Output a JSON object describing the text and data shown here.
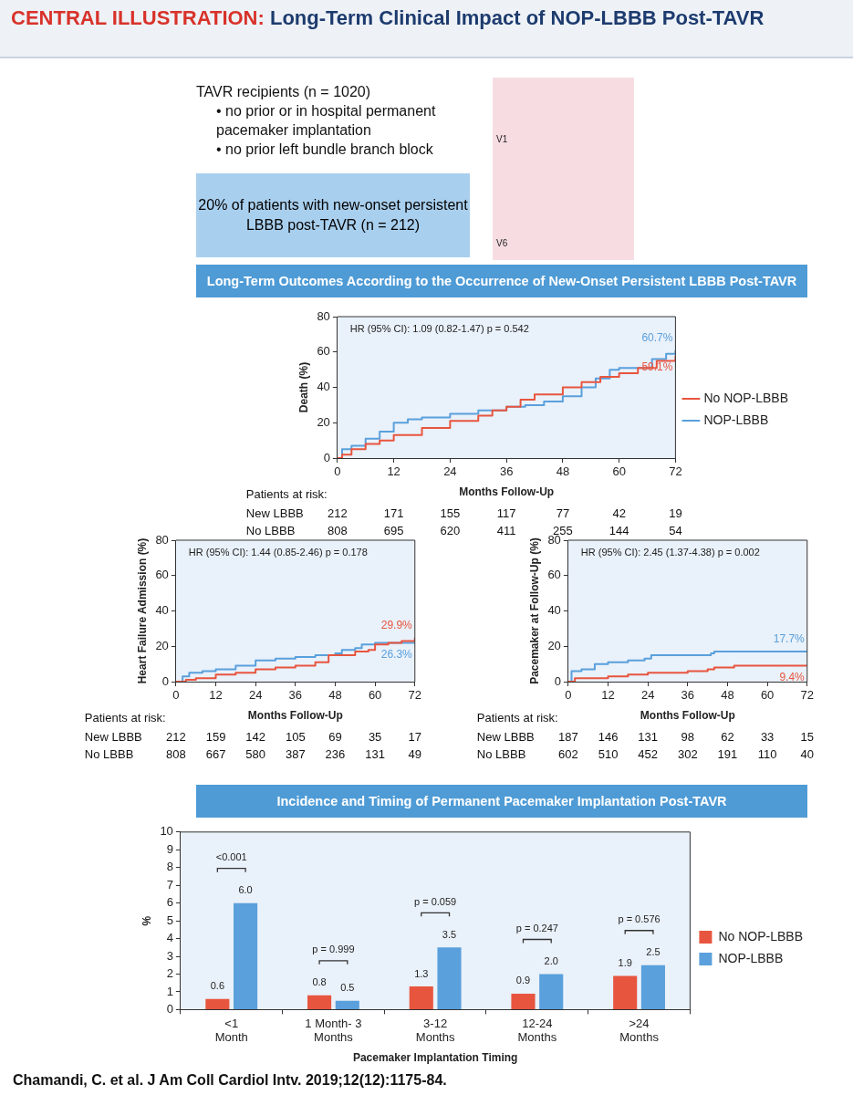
{
  "chart_data": [
    {
      "type": "step",
      "title": "CENTRAL ILLUSTRATION: Long-Term Clinical Impact of NOP-LBBB Post-TAVR",
      "subtitle": "Long-Term Outcomes According to the Occurrence of New-Onset Persistent LBBB Post-TAVR",
      "xlabel": "Months Follow-Up",
      "ylabel": "Death (%)",
      "series": [
        {
          "name": "No NOP-LBBB",
          "color": "#e8553f",
          "x": [
            0,
            1,
            3,
            6,
            9,
            12,
            18,
            24,
            30,
            33,
            36,
            39,
            42,
            48,
            52,
            56,
            60,
            64,
            68,
            72
          ],
          "values": [
            0,
            2,
            5,
            8,
            10,
            13,
            17,
            21,
            24,
            27,
            29,
            33,
            36,
            40,
            43,
            46,
            48,
            51,
            55,
            58
          ]
        },
        {
          "name": "NOP-LBBB",
          "color": "#5aa0dc",
          "x": [
            0,
            1,
            3,
            6,
            9,
            12,
            15,
            18,
            24,
            30,
            36,
            40,
            44,
            48,
            52,
            55,
            58,
            60,
            64,
            67,
            70,
            72
          ],
          "values": [
            0,
            5,
            7,
            11,
            15,
            20,
            22,
            23,
            25,
            27,
            29,
            30,
            32,
            35,
            40,
            45,
            50,
            51,
            51,
            56,
            59,
            61
          ]
        }
      ],
      "xlim": [
        0,
        72
      ],
      "xticks": [
        0,
        12,
        24,
        36,
        48,
        60,
        72
      ],
      "ylim": [
        0,
        80
      ],
      "yticks": [
        0,
        20,
        40,
        60,
        80
      ],
      "grid": false,
      "legend": "right",
      "marker": "none",
      "annotations": [
        "TAVR recipients (n = 1020)",
        "• no prior or in hospital permanent pacemaker implantation",
        "• no prior left bundle branch block",
        "20% of patients with new-onset persistent LBBB post-TAVR (n = 212)",
        "V1",
        "V6",
        "HR (95% CI): 1.09 (0.82-1.47) p = 0.542",
        "Patients at risk:",
        "New LBBB",
        "212",
        "171",
        "155",
        "117",
        "77",
        "42",
        "19",
        "No LBBB",
        "808",
        "695",
        "620",
        "411",
        "255",
        "144",
        "54",
        "59.1%",
        "60.7%"
      ]
    },
    {
      "type": "step",
      "xlabel": "Months Follow-Up",
      "ylabel": "Heart Failure Admission (%)",
      "series": [
        {
          "color": "#e8553f",
          "x": [
            0,
            3,
            6,
            12,
            18,
            24,
            30,
            36,
            42,
            46,
            48,
            54,
            58,
            60,
            64,
            68,
            72
          ],
          "values": [
            0,
            1,
            2,
            4,
            5,
            7,
            8,
            9,
            11,
            15,
            15,
            17,
            18,
            21,
            22,
            23,
            25
          ]
        },
        {
          "color": "#5aa0dc",
          "x": [
            0,
            2,
            4,
            8,
            12,
            18,
            24,
            30,
            36,
            42,
            48,
            50,
            54,
            56,
            60,
            72
          ],
          "values": [
            0,
            3,
            5,
            6,
            7,
            9,
            12,
            13,
            14,
            15,
            16,
            18,
            19,
            21,
            22,
            22
          ]
        }
      ],
      "xlim": [
        0,
        72
      ],
      "xticks": [
        0,
        12,
        24,
        36,
        48,
        60,
        72
      ],
      "ylim": [
        0,
        80
      ],
      "yticks": [
        0,
        20,
        40,
        60,
        80
      ],
      "grid": false,
      "marker": "none",
      "annotations": [
        "HR (95% CI): 1.44 (0.85-2.46) p = 0.178",
        "Patients at risk:",
        "New LBBB",
        "212",
        "159",
        "142",
        "105",
        "69",
        "35",
        "17",
        "No LBBB",
        "808",
        "667",
        "580",
        "387",
        "236",
        "131",
        "49",
        "29.9%",
        "26.3%"
      ]
    },
    {
      "type": "step",
      "xlabel": "Months Follow-Up",
      "ylabel": "Pacemaker at Follow-Up (%)",
      "series": [
        {
          "color": "#e8553f",
          "x": [
            0,
            2,
            6,
            12,
            18,
            24,
            30,
            36,
            42,
            44,
            50,
            72
          ],
          "values": [
            0,
            2,
            2,
            3,
            4,
            5,
            5,
            6,
            7,
            8,
            9,
            9
          ]
        },
        {
          "color": "#5aa0dc",
          "x": [
            0,
            1,
            4,
            8,
            12,
            18,
            23,
            25,
            36,
            43,
            44,
            72
          ],
          "values": [
            0,
            6,
            7,
            10,
            11,
            12,
            13,
            15,
            15,
            16,
            17,
            17
          ]
        }
      ],
      "xlim": [
        0,
        72
      ],
      "xticks": [
        0,
        12,
        24,
        36,
        48,
        60,
        72
      ],
      "ylim": [
        0,
        80
      ],
      "yticks": [
        0,
        20,
        40,
        60,
        80
      ],
      "grid": false,
      "marker": "none",
      "annotations": [
        "HR (95% CI): 2.45 (1.37-4.38) p = 0.002",
        "Patients at risk:",
        "New LBBB",
        "187",
        "146",
        "131",
        "98",
        "62",
        "33",
        "15",
        "No LBBB",
        "602",
        "510",
        "452",
        "302",
        "191",
        "110",
        "40",
        "9.4%",
        "17.7%"
      ]
    },
    {
      "type": "bar",
      "title": "Incidence and Timing of Permanent Pacemaker Implantation Post-TAVR",
      "xlabel": "Pacemaker Implantation Timing",
      "ylabel": "%",
      "categories": [
        "<1 Month",
        "1 Month- 3 Months",
        "3-12 Months",
        "12-24 Months",
        ">24 Months"
      ],
      "series": [
        {
          "name": "No NOP-LBBB",
          "color": "#e8553f",
          "values": [
            0.6,
            0.8,
            1.3,
            0.9,
            1.9
          ],
          "value_labels": [
            "0.6",
            "0.8",
            "1.3",
            "0.9",
            "1.9"
          ]
        },
        {
          "name": "NOP-LBBB",
          "color": "#5aa0dc",
          "values": [
            6.0,
            0.5,
            3.5,
            2.0,
            2.5
          ],
          "value_labels": [
            "6.0",
            "0.5",
            "3.5",
            "2.0",
            "2.5"
          ]
        }
      ],
      "ylim": [
        0,
        10
      ],
      "yticks": [
        0,
        1,
        2,
        3,
        4,
        5,
        6,
        7,
        8,
        9,
        10
      ],
      "grid": false,
      "legend": "right",
      "annotations": [
        "<0.001",
        "p = 0.999",
        "p = 0.059",
        "p = 0.247",
        "p = 0.576",
        "Chamandi, C. et al. J Am Coll Cardiol Intv. 2019;12(12):1175-84."
      ]
    }
  ]
}
